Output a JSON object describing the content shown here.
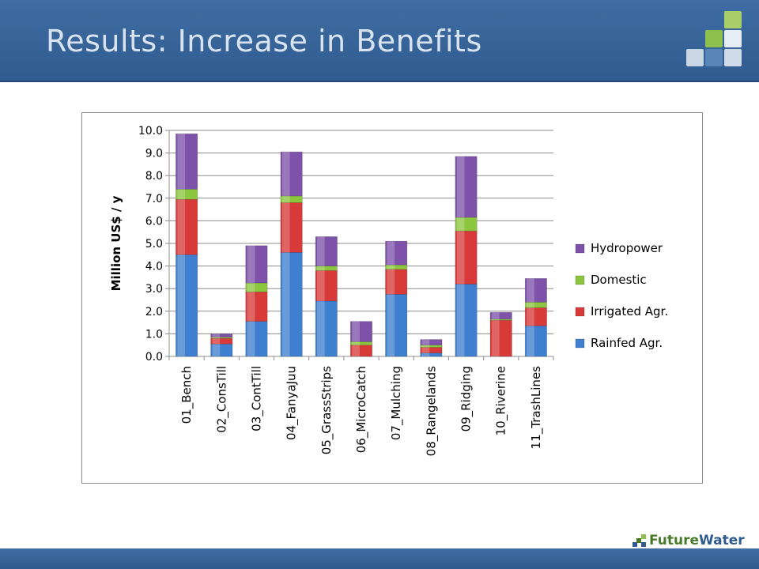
{
  "slide": {
    "title": "Results: Increase in Benefits",
    "brand_prefix": "Future",
    "brand_suffix": "Water"
  },
  "colors": {
    "header": "#3b679c",
    "Rainfed Agr.": "#3f7fcf",
    "Irrigated Agr.": "#d83a3a",
    "Domestic": "#8cc63f",
    "Hydropower": "#7d52a8"
  },
  "chart_data": {
    "type": "bar",
    "stacked": true,
    "ylabel": "Million US$ / y",
    "ylim": [
      0,
      10
    ],
    "yticks": [
      "0.0",
      "1.0",
      "2.0",
      "3.0",
      "4.0",
      "5.0",
      "6.0",
      "7.0",
      "8.0",
      "9.0",
      "10.0"
    ],
    "grid": true,
    "legend_position": "right",
    "categories": [
      "01_Bench",
      "02_ConsTill",
      "03_ContTill",
      "04_FanyaJuu",
      "05_GrassStrips",
      "06_MicroCatch",
      "07_Mulching",
      "08_Rangelands",
      "09_Ridging",
      "10_Riverine",
      "11_TrashLines"
    ],
    "series": [
      {
        "name": "Rainfed Agr.",
        "values": [
          4.5,
          0.55,
          1.55,
          4.6,
          2.45,
          0.0,
          2.75,
          0.15,
          3.2,
          0.0,
          1.35
        ]
      },
      {
        "name": "Irrigated Agr.",
        "values": [
          2.45,
          0.25,
          1.3,
          2.2,
          1.35,
          0.5,
          1.1,
          0.25,
          2.35,
          1.6,
          0.8
        ]
      },
      {
        "name": "Domestic",
        "values": [
          0.45,
          0.05,
          0.4,
          0.3,
          0.2,
          0.15,
          0.2,
          0.1,
          0.6,
          0.05,
          0.25
        ]
      },
      {
        "name": "Hydropower",
        "values": [
          2.45,
          0.15,
          1.65,
          1.95,
          1.3,
          0.9,
          1.05,
          0.25,
          2.7,
          0.3,
          1.05
        ]
      }
    ]
  }
}
